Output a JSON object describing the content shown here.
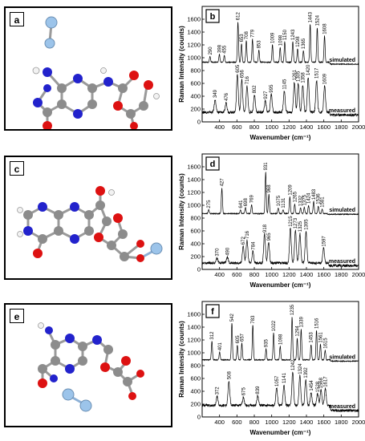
{
  "molecule_panels": [
    {
      "letter": "a"
    },
    {
      "letter": "c"
    },
    {
      "letter": "e"
    }
  ],
  "colors": {
    "carbon": "#8c8c8c",
    "nitrogen": "#2222cc",
    "oxygen": "#dd1111",
    "hydrogen": "#f2f2f2",
    "silver": "#9cc4ea",
    "spectrum_line": "#000000"
  },
  "chart_data": [
    {
      "type": "line",
      "letter": "b",
      "xlabel": "Wavenumber (cm⁻¹)",
      "ylabel": "Raman Intensity (counts)",
      "xlim": [
        200,
        2000
      ],
      "ylim": [
        0,
        1800
      ],
      "xticks": [
        400,
        600,
        800,
        1000,
        1200,
        1400,
        1600,
        1800,
        2000
      ],
      "yticks": [
        0,
        200,
        400,
        600,
        800,
        1000,
        1200,
        1400,
        1600
      ],
      "series": [
        {
          "name": "simulated",
          "baseline": 930,
          "end_level": 900,
          "peaks": [
            {
              "x": 290,
              "y": 1020,
              "label": "290"
            },
            {
              "x": 398,
              "y": 1050,
              "label": "398"
            },
            {
              "x": 455,
              "y": 1040,
              "label": "455"
            },
            {
              "x": 612,
              "y": 1560,
              "label": "612"
            },
            {
              "x": 653,
              "y": 1220,
              "label": "653"
            },
            {
              "x": 708,
              "y": 1260,
              "label": "708"
            },
            {
              "x": 779,
              "y": 1290,
              "label": "779"
            },
            {
              "x": 853,
              "y": 1120,
              "label": "853"
            },
            {
              "x": 1009,
              "y": 1200,
              "label": "1009"
            },
            {
              "x": 1098,
              "y": 1160,
              "label": "1098"
            },
            {
              "x": 1150,
              "y": 1250,
              "label": "1150"
            },
            {
              "x": 1243,
              "y": 1250,
              "label": "1243"
            },
            {
              "x": 1298,
              "y": 1140,
              "label": "1298"
            },
            {
              "x": 1365,
              "y": 1110,
              "label": "1365"
            },
            {
              "x": 1443,
              "y": 1520,
              "label": "1443"
            },
            {
              "x": 1524,
              "y": 1470,
              "label": "1524"
            },
            {
              "x": 1608,
              "y": 1340,
              "label": "1608"
            }
          ]
        },
        {
          "name": "measured",
          "baseline": 150,
          "end_level": 110,
          "peaks": [
            {
              "x": 349,
              "y": 350,
              "label": "349"
            },
            {
              "x": 476,
              "y": 300,
              "label": "476"
            },
            {
              "x": 605,
              "y": 740,
              "label": "605"
            },
            {
              "x": 656,
              "y": 660,
              "label": "656"
            },
            {
              "x": 716,
              "y": 560,
              "label": "716"
            },
            {
              "x": 802,
              "y": 420,
              "label": "802"
            },
            {
              "x": 927,
              "y": 330,
              "label": "927"
            },
            {
              "x": 995,
              "y": 430,
              "label": "995"
            },
            {
              "x": 1145,
              "y": 480,
              "label": "1145"
            },
            {
              "x": 1261,
              "y": 620,
              "label": "1261"
            },
            {
              "x": 1305,
              "y": 600,
              "label": "1305"
            },
            {
              "x": 1358,
              "y": 580,
              "label": "1358"
            },
            {
              "x": 1420,
              "y": 700,
              "label": "1420"
            },
            {
              "x": 1517,
              "y": 650,
              "label": "1517"
            },
            {
              "x": 1609,
              "y": 560,
              "label": "1609"
            }
          ]
        }
      ]
    },
    {
      "type": "line",
      "letter": "d",
      "xlabel": "Wavenumber (cm⁻¹)",
      "ylabel": "Raman Intensity (counts)",
      "xlim": [
        200,
        2000
      ],
      "ylim": [
        0,
        1800
      ],
      "xticks": [
        400,
        600,
        800,
        1000,
        1200,
        1400,
        1600,
        1800,
        2000
      ],
      "yticks": [
        0,
        200,
        400,
        600,
        800,
        1000,
        1200,
        1400,
        1600
      ],
      "series": [
        {
          "name": "simulated",
          "baseline": 870,
          "end_level": 860,
          "peaks": [
            {
              "x": 275,
              "y": 930,
              "label": "275"
            },
            {
              "x": 427,
              "y": 1270,
              "label": "427"
            },
            {
              "x": 641,
              "y": 930,
              "label": "641"
            },
            {
              "x": 698,
              "y": 960,
              "label": "698"
            },
            {
              "x": 769,
              "y": 1010,
              "label": "769"
            },
            {
              "x": 931,
              "y": 1520,
              "label": "931"
            },
            {
              "x": 968,
              "y": 1170,
              "label": "968"
            },
            {
              "x": 1075,
              "y": 960,
              "label": "1075"
            },
            {
              "x": 1131,
              "y": 930,
              "label": "1131"
            },
            {
              "x": 1209,
              "y": 1130,
              "label": "1209"
            },
            {
              "x": 1265,
              "y": 1020,
              "label": "1265"
            },
            {
              "x": 1332,
              "y": 960,
              "label": "1332"
            },
            {
              "x": 1375,
              "y": 970,
              "label": "1375"
            },
            {
              "x": 1424,
              "y": 1000,
              "label": "1424"
            },
            {
              "x": 1483,
              "y": 1060,
              "label": "1483"
            },
            {
              "x": 1536,
              "y": 990,
              "label": "1536"
            },
            {
              "x": 1581,
              "y": 940,
              "label": "1581"
            }
          ]
        },
        {
          "name": "measured",
          "baseline": 100,
          "end_level": 60,
          "peaks": [
            {
              "x": 370,
              "y": 180,
              "label": "370"
            },
            {
              "x": 490,
              "y": 190,
              "label": "490"
            },
            {
              "x": 672,
              "y": 360,
              "label": "672"
            },
            {
              "x": 716,
              "y": 450,
              "label": "716"
            },
            {
              "x": 784,
              "y": 280,
              "label": "784"
            },
            {
              "x": 918,
              "y": 550,
              "label": "918"
            },
            {
              "x": 965,
              "y": 420,
              "label": "965"
            },
            {
              "x": 1215,
              "y": 640,
              "label": "1215"
            },
            {
              "x": 1273,
              "y": 610,
              "label": "1273"
            },
            {
              "x": 1325,
              "y": 560,
              "label": "1325"
            },
            {
              "x": 1395,
              "y": 590,
              "label": "1395"
            },
            {
              "x": 1597,
              "y": 330,
              "label": "1597"
            }
          ]
        }
      ]
    },
    {
      "type": "line",
      "letter": "f",
      "xlabel": "Wavenumber (cm⁻¹)",
      "ylabel": "Raman Intensity (counts)",
      "xlim": [
        200,
        2000
      ],
      "ylim": [
        0,
        1800
      ],
      "xticks": [
        400,
        600,
        800,
        1000,
        1200,
        1400,
        1600,
        1800,
        2000
      ],
      "yticks": [
        0,
        200,
        400,
        600,
        800,
        1000,
        1200,
        1400,
        1600
      ],
      "series": [
        {
          "name": "simulated",
          "baseline": 890,
          "end_level": 870,
          "peaks": [
            {
              "x": 312,
              "y": 1180,
              "label": "312"
            },
            {
              "x": 401,
              "y": 1010,
              "label": "401"
            },
            {
              "x": 542,
              "y": 1460,
              "label": "542"
            },
            {
              "x": 605,
              "y": 1120,
              "label": "605"
            },
            {
              "x": 657,
              "y": 1150,
              "label": "657"
            },
            {
              "x": 783,
              "y": 1430,
              "label": "783"
            },
            {
              "x": 935,
              "y": 1060,
              "label": "935"
            },
            {
              "x": 1022,
              "y": 1310,
              "label": "1022"
            },
            {
              "x": 1098,
              "y": 1100,
              "label": "1098"
            },
            {
              "x": 1235,
              "y": 1560,
              "label": "1235"
            },
            {
              "x": 1294,
              "y": 1230,
              "label": "1294"
            },
            {
              "x": 1339,
              "y": 1370,
              "label": "1339"
            },
            {
              "x": 1453,
              "y": 1130,
              "label": "1453"
            },
            {
              "x": 1516,
              "y": 1350,
              "label": "1516"
            },
            {
              "x": 1561,
              "y": 1130,
              "label": "1561"
            },
            {
              "x": 1615,
              "y": 1040,
              "label": "1615"
            }
          ]
        },
        {
          "name": "measured",
          "baseline": 180,
          "end_level": 100,
          "peaks": [
            {
              "x": 372,
              "y": 320,
              "label": "372"
            },
            {
              "x": 508,
              "y": 560,
              "label": "508"
            },
            {
              "x": 675,
              "y": 310,
              "label": "675"
            },
            {
              "x": 839,
              "y": 330,
              "label": "839"
            },
            {
              "x": 1057,
              "y": 450,
              "label": "1057"
            },
            {
              "x": 1141,
              "y": 500,
              "label": "1141"
            },
            {
              "x": 1242,
              "y": 700,
              "label": "1242"
            },
            {
              "x": 1324,
              "y": 640,
              "label": "1324"
            },
            {
              "x": 1392,
              "y": 580,
              "label": "1392"
            },
            {
              "x": 1454,
              "y": 380,
              "label": "1454"
            },
            {
              "x": 1528,
              "y": 360,
              "label": "1528"
            },
            {
              "x": 1568,
              "y": 420,
              "label": "1568"
            },
            {
              "x": 1617,
              "y": 440,
              "label": "1617"
            }
          ]
        }
      ]
    }
  ]
}
